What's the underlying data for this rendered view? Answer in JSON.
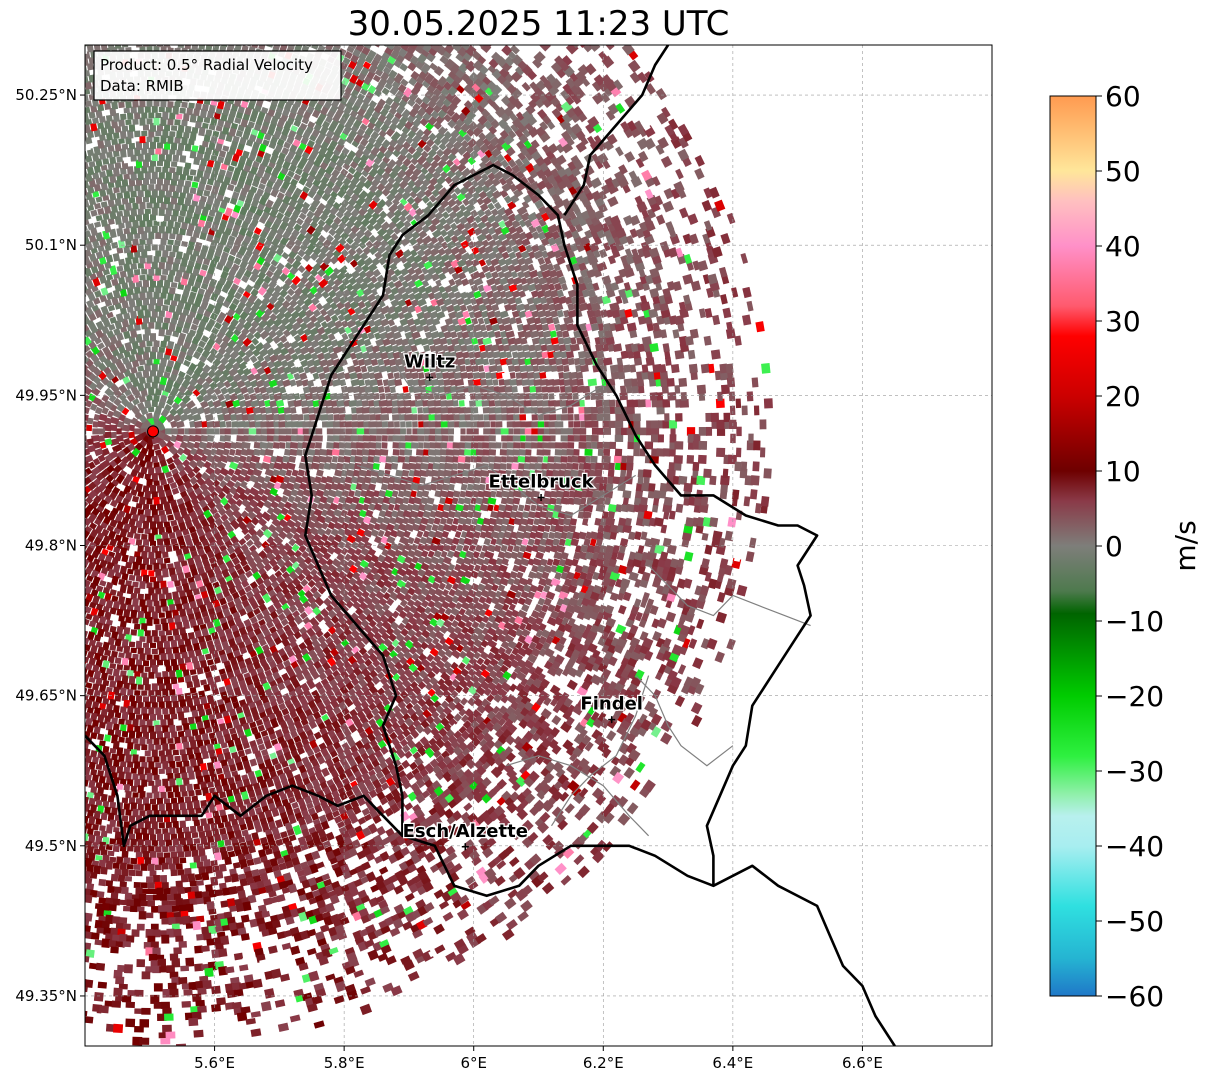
{
  "title": "30.05.2025 11:23 UTC",
  "info_box": {
    "product": "Product: 0.5° Radial Velocity",
    "data": "Data: RMIB"
  },
  "map": {
    "lon_range": [
      5.4,
      6.8
    ],
    "lat_range": [
      49.3,
      50.3
    ],
    "x_ticks": [
      {
        "value": 5.6,
        "label": "5.6°E"
      },
      {
        "value": 5.8,
        "label": "5.8°E"
      },
      {
        "value": 6.0,
        "label": "6°E"
      },
      {
        "value": 6.2,
        "label": "6.2°E"
      },
      {
        "value": 6.4,
        "label": "6.4°E"
      },
      {
        "value": 6.6,
        "label": "6.6°E"
      }
    ],
    "y_ticks": [
      {
        "value": 49.35,
        "label": "49.35°N"
      },
      {
        "value": 49.5,
        "label": "49.5°N"
      },
      {
        "value": 49.65,
        "label": "49.65°N"
      },
      {
        "value": 49.8,
        "label": "49.8°N"
      },
      {
        "value": 49.95,
        "label": "49.95°N"
      },
      {
        "value": 50.1,
        "label": "50.1°N"
      },
      {
        "value": 50.25,
        "label": "50.25°N"
      }
    ],
    "grid": true,
    "radar_site": {
      "lon": 5.505,
      "lat": 49.914,
      "color": "#ff0000"
    },
    "cities": [
      {
        "name": "Wiltz",
        "lon": 5.932,
        "lat": 49.968
      },
      {
        "name": "Ettelbruck",
        "lon": 6.104,
        "lat": 49.848
      },
      {
        "name": "Findel",
        "lon": 6.213,
        "lat": 49.626
      },
      {
        "name": "Esch/Alzette",
        "lon": 5.987,
        "lat": 49.499
      }
    ]
  },
  "colorbar": {
    "label": "m/s",
    "min": -60,
    "max": 60,
    "ticks": [
      {
        "value": 60,
        "label": "60"
      },
      {
        "value": 50,
        "label": "50"
      },
      {
        "value": 40,
        "label": "40"
      },
      {
        "value": 30,
        "label": "30"
      },
      {
        "value": 20,
        "label": "20"
      },
      {
        "value": 10,
        "label": "10"
      },
      {
        "value": 0,
        "label": "0"
      },
      {
        "value": -10,
        "label": "−10"
      },
      {
        "value": -20,
        "label": "−20"
      },
      {
        "value": -30,
        "label": "−30"
      },
      {
        "value": -40,
        "label": "−40"
      },
      {
        "value": -50,
        "label": "−50"
      },
      {
        "value": -60,
        "label": "−60"
      }
    ],
    "stops": [
      {
        "value": -60,
        "color": "#1f78c8"
      },
      {
        "value": -55,
        "color": "#25b4d2"
      },
      {
        "value": -48,
        "color": "#2fe0e0"
      },
      {
        "value": -40,
        "color": "#a8eef0"
      },
      {
        "value": -36,
        "color": "#b8f0ee"
      },
      {
        "value": -33,
        "color": "#8ef0a8"
      },
      {
        "value": -28,
        "color": "#2ef040"
      },
      {
        "value": -20,
        "color": "#00cc00"
      },
      {
        "value": -9,
        "color": "#006400"
      },
      {
        "value": -6,
        "color": "#4e7a4e"
      },
      {
        "value": 0,
        "color": "#7e7e7a"
      },
      {
        "value": 6,
        "color": "#8a3a48"
      },
      {
        "value": 10,
        "color": "#6e0000"
      },
      {
        "value": 20,
        "color": "#cc0000"
      },
      {
        "value": 28,
        "color": "#ff0000"
      },
      {
        "value": 32,
        "color": "#ff5a6e"
      },
      {
        "value": 40,
        "color": "#ff90c8"
      },
      {
        "value": 46,
        "color": "#ffc0c0"
      },
      {
        "value": 50,
        "color": "#ffe69a"
      },
      {
        "value": 60,
        "color": "#ff9a50"
      }
    ]
  },
  "borders": {
    "national": [
      [
        [
          5.4,
          49.61
        ],
        [
          5.43,
          49.59
        ],
        [
          5.45,
          49.55
        ],
        [
          5.46,
          49.5
        ],
        [
          5.47,
          49.52
        ],
        [
          5.5,
          49.53
        ],
        [
          5.58,
          49.53
        ],
        [
          5.6,
          49.55
        ],
        [
          5.64,
          49.53
        ],
        [
          5.68,
          49.55
        ],
        [
          5.72,
          49.56
        ],
        [
          5.76,
          49.55
        ],
        [
          5.79,
          49.54
        ],
        [
          5.83,
          49.55
        ],
        [
          5.86,
          49.53
        ],
        [
          5.89,
          49.51
        ],
        [
          5.94,
          49.5
        ],
        [
          5.97,
          49.46
        ],
        [
          6.02,
          49.45
        ],
        [
          6.07,
          49.46
        ],
        [
          6.1,
          49.48
        ],
        [
          6.15,
          49.5
        ],
        [
          6.2,
          49.5
        ],
        [
          6.24,
          49.5
        ],
        [
          6.28,
          49.49
        ],
        [
          6.33,
          49.47
        ],
        [
          6.37,
          49.46
        ],
        [
          6.43,
          49.48
        ],
        [
          6.47,
          49.46
        ],
        [
          6.53,
          49.44
        ],
        [
          6.55,
          49.41
        ],
        [
          6.57,
          49.38
        ],
        [
          6.6,
          49.36
        ],
        [
          6.62,
          49.33
        ],
        [
          6.64,
          49.31
        ],
        [
          6.65,
          49.3
        ]
      ],
      [
        [
          6.37,
          49.46
        ],
        [
          6.37,
          49.49
        ],
        [
          6.36,
          49.52
        ],
        [
          6.38,
          49.55
        ],
        [
          6.4,
          49.58
        ],
        [
          6.42,
          49.6
        ],
        [
          6.43,
          49.64
        ],
        [
          6.47,
          49.68
        ],
        [
          6.5,
          49.71
        ],
        [
          6.52,
          49.73
        ],
        [
          6.51,
          49.76
        ],
        [
          6.5,
          49.78
        ],
        [
          6.53,
          49.81
        ],
        [
          6.5,
          49.82
        ],
        [
          6.47,
          49.82
        ],
        [
          6.42,
          49.83
        ],
        [
          6.37,
          49.85
        ],
        [
          6.32,
          49.85
        ],
        [
          6.28,
          49.88
        ],
        [
          6.25,
          49.91
        ],
        [
          6.22,
          49.95
        ],
        [
          6.19,
          49.98
        ],
        [
          6.16,
          50.02
        ],
        [
          6.16,
          50.06
        ],
        [
          6.14,
          50.1
        ],
        [
          6.13,
          50.13
        ],
        [
          6.1,
          50.15
        ],
        [
          6.06,
          50.17
        ],
        [
          6.03,
          50.18
        ],
        [
          6.0,
          50.17
        ],
        [
          5.97,
          50.16
        ],
        [
          5.93,
          50.13
        ],
        [
          5.89,
          50.11
        ],
        [
          5.87,
          50.09
        ],
        [
          5.86,
          50.05
        ],
        [
          5.83,
          50.02
        ],
        [
          5.81,
          50.0
        ],
        [
          5.78,
          49.97
        ],
        [
          5.76,
          49.93
        ],
        [
          5.74,
          49.89
        ],
        [
          5.75,
          49.85
        ],
        [
          5.74,
          49.81
        ],
        [
          5.76,
          49.78
        ],
        [
          5.78,
          49.75
        ],
        [
          5.82,
          49.72
        ],
        [
          5.86,
          49.69
        ],
        [
          5.88,
          49.65
        ],
        [
          5.86,
          49.62
        ],
        [
          5.88,
          49.58
        ],
        [
          5.89,
          49.55
        ],
        [
          5.89,
          49.51
        ]
      ],
      [
        [
          6.14,
          50.13
        ],
        [
          6.17,
          50.16
        ],
        [
          6.18,
          50.19
        ],
        [
          6.22,
          50.22
        ],
        [
          6.26,
          50.25
        ],
        [
          6.28,
          50.28
        ],
        [
          6.3,
          50.3
        ]
      ]
    ],
    "regional": [
      [
        [
          5.88,
          49.98
        ],
        [
          5.9,
          49.96
        ],
        [
          5.95,
          49.95
        ],
        [
          6.0,
          49.96
        ],
        [
          6.05,
          49.95
        ],
        [
          6.1,
          49.93
        ],
        [
          6.15,
          49.94
        ],
        [
          6.2,
          49.96
        ]
      ],
      [
        [
          5.82,
          49.88
        ],
        [
          5.87,
          49.87
        ],
        [
          5.92,
          49.86
        ],
        [
          5.97,
          49.87
        ],
        [
          6.02,
          49.88
        ],
        [
          6.06,
          49.86
        ],
        [
          6.1,
          49.84
        ],
        [
          6.15,
          49.83
        ],
        [
          6.2,
          49.85
        ],
        [
          6.25,
          49.87
        ]
      ],
      [
        [
          6.27,
          49.78
        ],
        [
          6.3,
          49.76
        ],
        [
          6.33,
          49.74
        ],
        [
          6.37,
          49.73
        ],
        [
          6.4,
          49.75
        ],
        [
          6.44,
          49.74
        ],
        [
          6.48,
          49.73
        ],
        [
          6.52,
          49.72
        ]
      ],
      [
        [
          6.25,
          49.67
        ],
        [
          6.28,
          49.65
        ],
        [
          6.3,
          49.62
        ],
        [
          6.32,
          49.6
        ],
        [
          6.36,
          49.58
        ],
        [
          6.4,
          49.6
        ]
      ],
      [
        [
          6.05,
          49.58
        ],
        [
          6.1,
          49.59
        ],
        [
          6.15,
          49.58
        ],
        [
          6.2,
          49.56
        ],
        [
          6.24,
          49.53
        ],
        [
          6.27,
          49.51
        ]
      ],
      [
        [
          6.12,
          49.52
        ],
        [
          6.15,
          49.55
        ],
        [
          6.18,
          49.57
        ],
        [
          6.22,
          49.59
        ],
        [
          6.25,
          49.63
        ],
        [
          6.27,
          49.67
        ]
      ]
    ]
  }
}
